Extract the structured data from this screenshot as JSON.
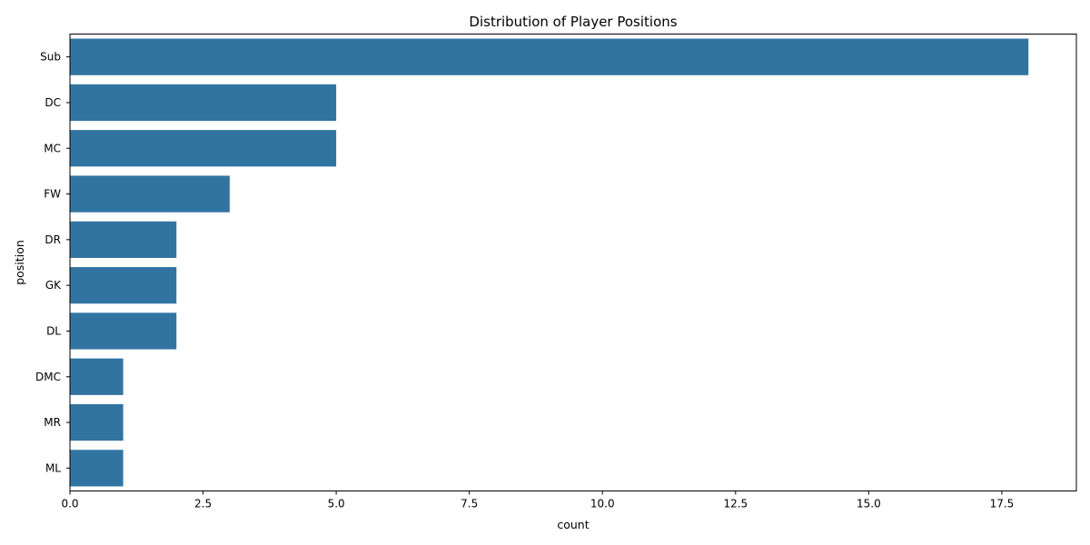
{
  "chart_data": {
    "type": "bar",
    "orientation": "horizontal",
    "title": "Distribution of Player Positions",
    "xlabel": "count",
    "ylabel": "position",
    "categories": [
      "Sub",
      "DC",
      "MC",
      "FW",
      "DR",
      "GK",
      "DL",
      "DMC",
      "MR",
      "ML"
    ],
    "values": [
      18,
      5,
      5,
      3,
      2,
      2,
      2,
      1,
      1,
      1
    ],
    "xlim": [
      0,
      18.9
    ],
    "xticks": [
      0.0,
      2.5,
      5.0,
      7.5,
      10.0,
      12.5,
      15.0,
      17.5
    ],
    "xtick_labels": [
      "0.0",
      "2.5",
      "5.0",
      "7.5",
      "10.0",
      "12.5",
      "15.0",
      "17.5"
    ],
    "bar_color": "#3274a1",
    "grid": false,
    "legend": "none"
  }
}
